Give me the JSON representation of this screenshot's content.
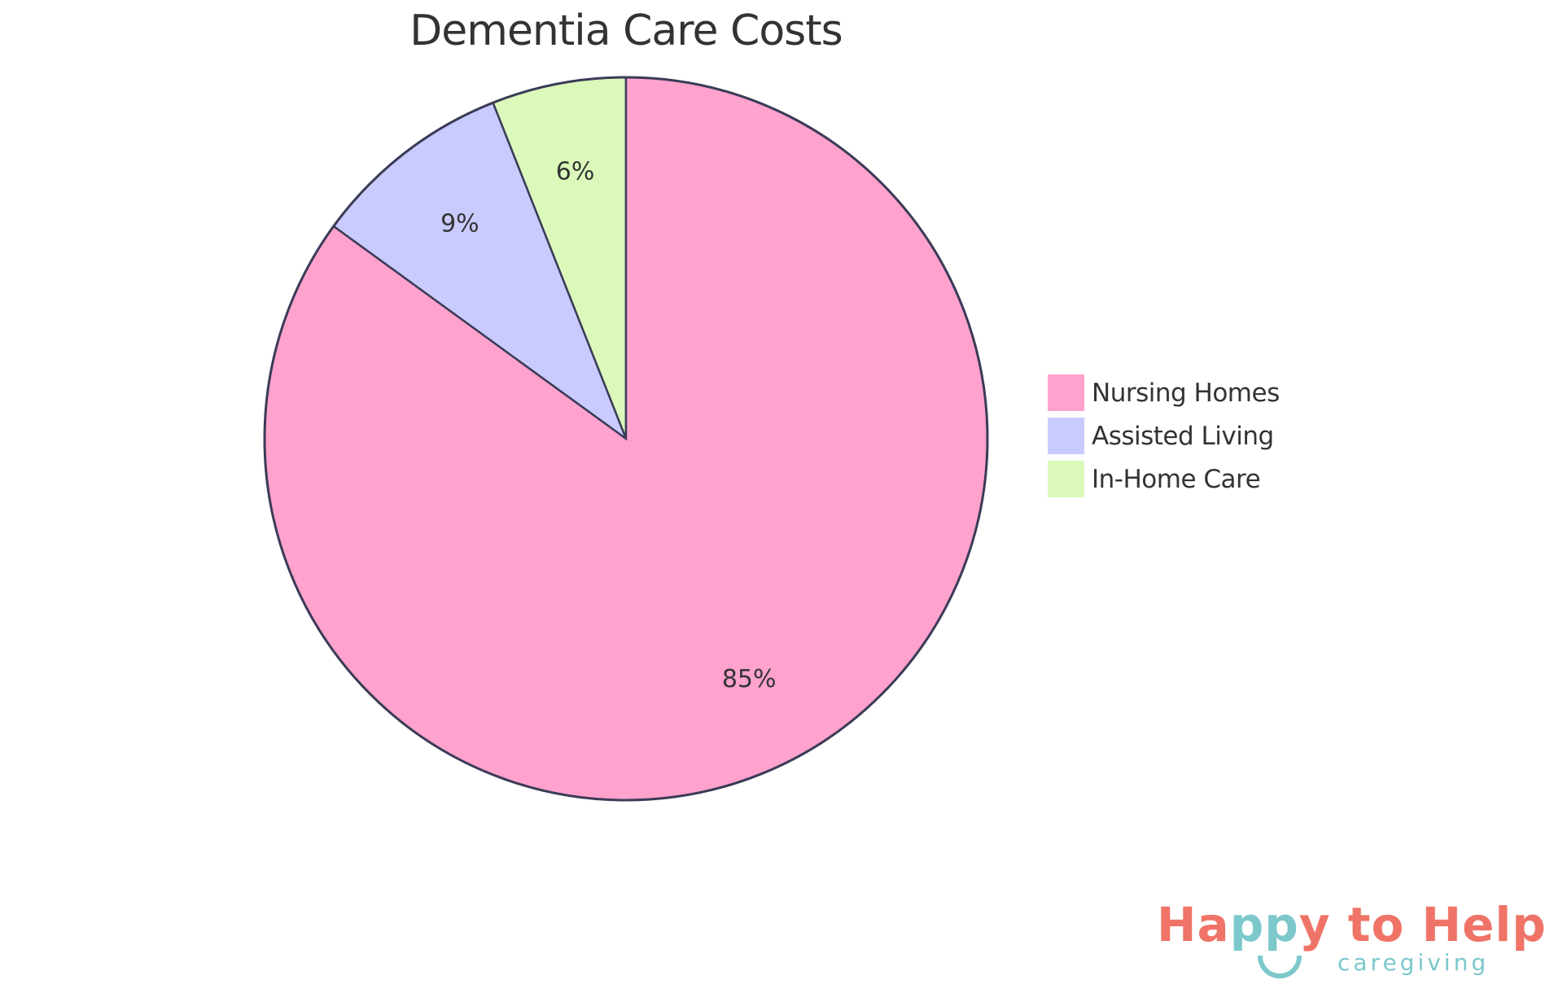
{
  "chart_data": {
    "type": "pie",
    "title": "Dementia Care Costs",
    "categories": [
      "Nursing Homes",
      "Assisted Living",
      "In-Home Care"
    ],
    "values": [
      85,
      9,
      6
    ],
    "labels": [
      "85%",
      "9%",
      "6%"
    ],
    "colors": [
      "#FFA2CD",
      "#C9CBFF",
      "#DBF9BA"
    ],
    "stroke_color": "#3B3B58",
    "legend_position": "right",
    "start_angle": "12 o'clock, counter-clockwise order: In-Home Care, Assisted Living, Nursing Homes"
  },
  "legend": {
    "items": [
      {
        "label": "Nursing Homes",
        "color": "#FFA2CD"
      },
      {
        "label": "Assisted Living",
        "color": "#C9CBFF"
      },
      {
        "label": "In-Home Care",
        "color": "#DBF9BA"
      }
    ]
  },
  "logo": {
    "part1": "Ha",
    "part2": "pp",
    "part3": "y to Help",
    "sub": "caregiving",
    "coral": "#EF7467",
    "teal": "#7CC8CB"
  }
}
